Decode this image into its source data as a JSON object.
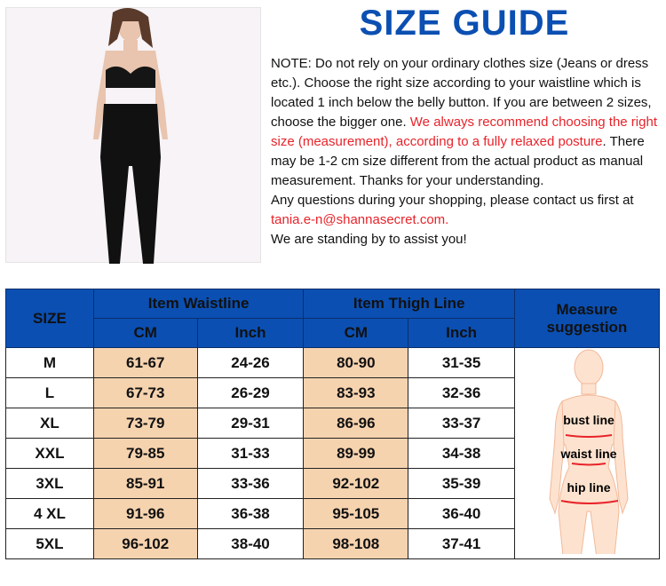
{
  "title": "SIZE GUIDE",
  "note": {
    "p1": "NOTE: Do not rely on your ordinary clothes size (Jeans or dress etc.). Choose the right size according to your waistline which is located 1 inch below the belly button. If you are between 2 sizes, choose the bigger one. ",
    "p1_red": "We always recommend choosing the right size (measurement), according to a fully relaxed posture",
    "p2": ". There may be 1-2 cm size different from the actual product as manual measurement. Thanks for your understanding.",
    "p3": "Any questions during your shopping, please contact us first at ",
    "email": "tania.e-n@shannasecret.com.",
    "p4": "We are standing by to assist you!"
  },
  "table": {
    "size_header": "SIZE",
    "waist_header": "Item Waistline",
    "thigh_header": "Item Thigh Line",
    "measure_header": "Measure suggestion",
    "cm": "CM",
    "inch": "Inch",
    "rows": [
      [
        "M",
        "61-67",
        "24-26",
        "80-90",
        "31-35"
      ],
      [
        "L",
        "67-73",
        "26-29",
        "83-93",
        "32-36"
      ],
      [
        "XL",
        "73-79",
        "29-31",
        "86-96",
        "33-37"
      ],
      [
        "XXL",
        "79-85",
        "31-33",
        "89-99",
        "34-38"
      ],
      [
        "3XL",
        "85-91",
        "33-36",
        "92-102",
        "35-39"
      ],
      [
        "4 XL",
        "91-96",
        "36-38",
        "95-105",
        "36-40"
      ],
      [
        "5XL",
        "96-102",
        "38-40",
        "98-108",
        "37-41"
      ]
    ]
  },
  "figure": {
    "bust": "bust line",
    "waist": "waist line",
    "hip": "hip line"
  },
  "colors": {
    "brand_blue": "#0b4fb2",
    "accent_red": "#e8232a",
    "cm_fill": "#f6d3af"
  }
}
